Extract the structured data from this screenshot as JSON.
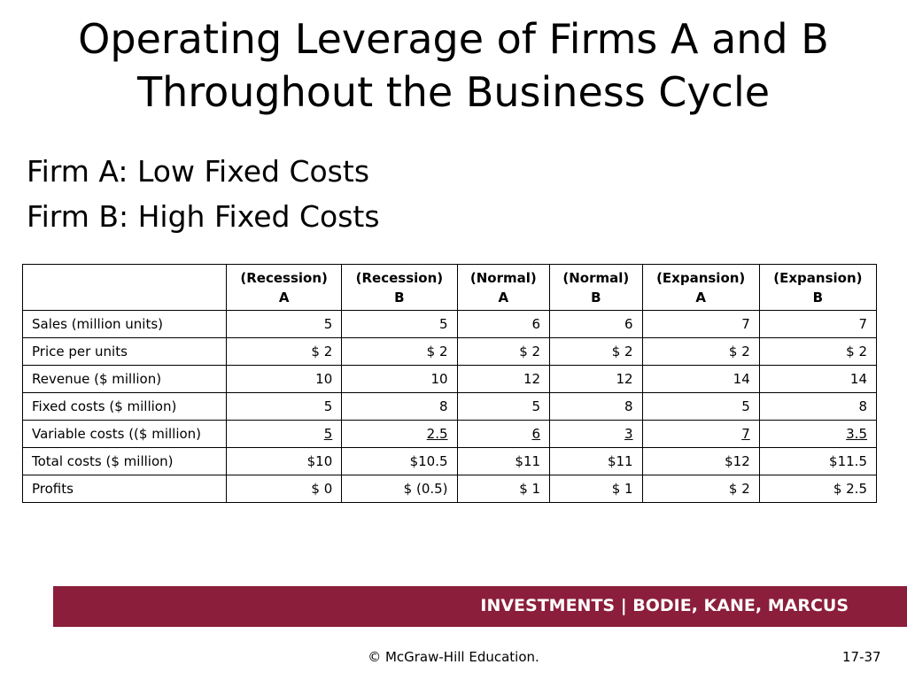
{
  "title": {
    "line1": "Operating Leverage of Firms A and B",
    "line2": "Throughout the Business Cycle"
  },
  "subtitle": {
    "firm_a": "Firm A: Low Fixed Costs",
    "firm_b": "Firm B: High Fixed Costs"
  },
  "table": {
    "columns": [
      {
        "top": "(Recession)",
        "bottom": "A"
      },
      {
        "top": "(Recession)",
        "bottom": "B"
      },
      {
        "top": "(Normal)",
        "bottom": "A"
      },
      {
        "top": "(Normal)",
        "bottom": "B"
      },
      {
        "top": "(Expansion)",
        "bottom": "A"
      },
      {
        "top": "(Expansion)",
        "bottom": "B"
      }
    ],
    "rows": [
      {
        "label": "Sales (million units)",
        "values": [
          "5",
          "5",
          "6",
          "6",
          "7",
          "7"
        ]
      },
      {
        "label": "Price per units",
        "values": [
          "$ 2",
          "$ 2",
          "$ 2",
          "$ 2",
          "$ 2",
          "$ 2"
        ]
      },
      {
        "label": "Revenue ($ million)",
        "values": [
          "10",
          "10",
          "12",
          "12",
          "14",
          "14"
        ]
      },
      {
        "label": "Fixed costs ($ million)",
        "values": [
          "5",
          "8",
          "5",
          "8",
          "5",
          "8"
        ]
      },
      {
        "label": "Variable costs (($ million)",
        "values": [
          "5",
          "2.5",
          "6",
          "3",
          "7",
          "3.5"
        ]
      },
      {
        "label": "Total costs ($ million)",
        "values": [
          "$10",
          "$10.5",
          "$11",
          "$11",
          "$12",
          "$11.5"
        ]
      },
      {
        "label": "Profits",
        "values": [
          "$ 0",
          "$ (0.5)",
          "$ 1",
          "$ 1",
          "$ 2",
          "$ 2.5"
        ]
      }
    ]
  },
  "footer": {
    "banner": "INVESTMENTS | BODIE, KANE, MARCUS",
    "copyright": "© McGraw-Hill Education.",
    "page": "17-37"
  },
  "colors": {
    "banner_bg": "#8b1e3a",
    "banner_text": "#ffffff"
  }
}
